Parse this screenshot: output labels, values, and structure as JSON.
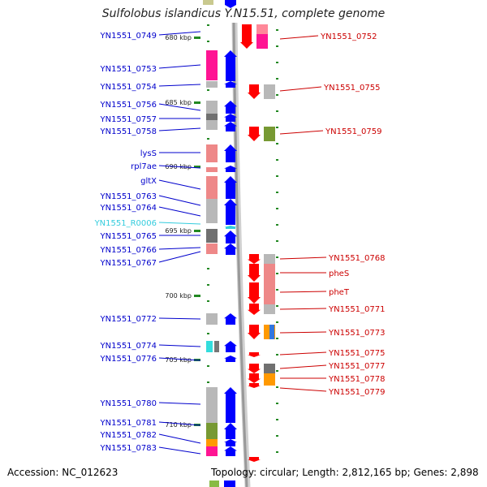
{
  "title": "Sulfolobus islandicus Y.N15.51, complete genome",
  "footer": {
    "accession": "Accession: NC_012623",
    "topology": "Topology: circular; Length: 2,812,165 bp; Genes: 2,898"
  },
  "map": {
    "kbp_start": 678.6,
    "kbp_per_100px": 6.1,
    "ruler_labels": [
      "680 kbp",
      "685 kbp",
      "690 kbp",
      "695 kbp",
      "700 kbp",
      "705 kbp",
      "710 kbp"
    ],
    "colors": {
      "left_label": "#0000cc",
      "right_label": "#cc0000",
      "rna_label": "#33ccdd",
      "forward_arrow": "#0000ff",
      "reverse_arrow": "#ff0000",
      "rna_arrow": "#33ccdd",
      "strand_line": "#999999",
      "ruler_tick": "#228822"
    }
  },
  "left_genes": [
    {
      "id": "YN1551_0749",
      "kind": "cds"
    },
    {
      "id": "YN1551_0753",
      "kind": "cds"
    },
    {
      "id": "YN1551_0754",
      "kind": "cds"
    },
    {
      "id": "YN1551_0756",
      "kind": "cds"
    },
    {
      "id": "YN1551_0757",
      "kind": "cds"
    },
    {
      "id": "YN1551_0758",
      "kind": "cds"
    },
    {
      "id": "lysS",
      "kind": "cds"
    },
    {
      "id": "rpl7ae",
      "kind": "cds"
    },
    {
      "id": "gltX",
      "kind": "cds"
    },
    {
      "id": "YN1551_0763",
      "kind": "cds"
    },
    {
      "id": "YN1551_0764",
      "kind": "cds"
    },
    {
      "id": "YN1551_R0006",
      "kind": "rna"
    },
    {
      "id": "YN1551_0765",
      "kind": "cds"
    },
    {
      "id": "YN1551_0766",
      "kind": "cds"
    },
    {
      "id": "YN1551_0767",
      "kind": "cds"
    },
    {
      "id": "YN1551_0772",
      "kind": "cds"
    },
    {
      "id": "YN1551_0774",
      "kind": "cds"
    },
    {
      "id": "YN1551_0776",
      "kind": "cds"
    },
    {
      "id": "YN1551_0780",
      "kind": "cds"
    },
    {
      "id": "YN1551_0781",
      "kind": "cds"
    },
    {
      "id": "YN1551_0782",
      "kind": "cds"
    },
    {
      "id": "YN1551_0783",
      "kind": "cds"
    }
  ],
  "right_genes": [
    {
      "id": "YN1551_0752"
    },
    {
      "id": "YN1551_0755"
    },
    {
      "id": "YN1551_0759"
    },
    {
      "id": "YN1551_0768"
    },
    {
      "id": "pheS"
    },
    {
      "id": "pheT"
    },
    {
      "id": "YN1551_0771"
    },
    {
      "id": "YN1551_0773"
    },
    {
      "id": "YN1551_0775"
    },
    {
      "id": "YN1551_0777"
    },
    {
      "id": "YN1551_0778"
    },
    {
      "id": "YN1551_0779"
    }
  ]
}
